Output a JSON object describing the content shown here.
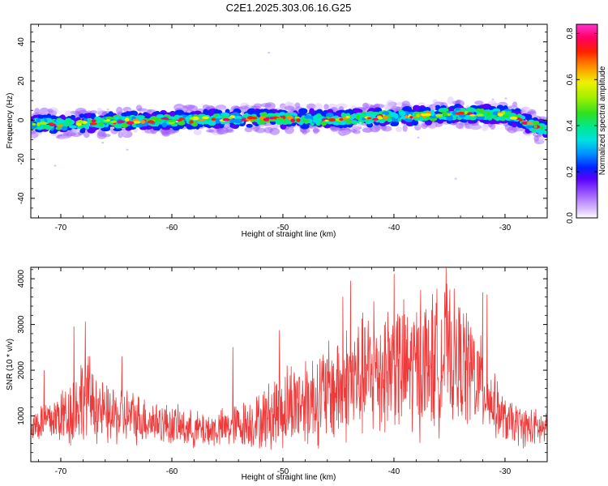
{
  "title": "C2E1.2025.303.06.16.G25",
  "colors": {
    "snr_line": "#ee3a3a",
    "axis": "#000000",
    "colormap": [
      "#ffffff",
      "#dcc4ff",
      "#a060ff",
      "#5a00ff",
      "#0022ff",
      "#0090ff",
      "#00e0e0",
      "#00e890",
      "#30e020",
      "#a0f000",
      "#f0f000",
      "#ff9000",
      "#ff2000",
      "#ff0060",
      "#ff30d0"
    ]
  },
  "chart_data": [
    {
      "type": "heatmap",
      "name": "spectrogram",
      "xlabel": "Height of straight line (km)",
      "ylabel": "Frequency (Hz)",
      "xlim": [
        -72.7,
        -26.2
      ],
      "ylim": [
        -50,
        49
      ],
      "xticks": [
        -70,
        -60,
        -50,
        -40,
        -30
      ],
      "xtick_labels": [
        "-70",
        "-60",
        "-50",
        "-40",
        "-30"
      ],
      "yticks": [
        -40,
        -20,
        0,
        20,
        40
      ],
      "ytick_labels": [
        "-40",
        "-20",
        "0",
        "20",
        "40"
      ],
      "ridge_height_km": [
        -72.5,
        -70,
        -67.5,
        -65,
        -62.5,
        -60,
        -57.5,
        -55,
        -52.5,
        -50,
        -47.5,
        -45,
        -42.5,
        -40,
        -37.5,
        -35,
        -32.5,
        -30,
        -28.5,
        -27.5,
        -26.2
      ],
      "ridge_frequency_hz": [
        -1.8,
        -2.2,
        -1.5,
        -0.8,
        -0.3,
        -0.2,
        0.2,
        0.8,
        1.0,
        0.8,
        0.5,
        0.6,
        1.2,
        1.8,
        2.5,
        3.2,
        3.0,
        2.8,
        0.5,
        -3.0,
        -5.5
      ],
      "colorbar": {
        "label": "Normalized spectral amplitude",
        "range": [
          0,
          0.84
        ],
        "ticks": [
          0,
          0.2,
          0.4,
          0.6,
          0.8
        ],
        "tick_labels": [
          "0.0",
          "0.2",
          "0.4",
          "0.6",
          "0.8"
        ]
      }
    },
    {
      "type": "line",
      "name": "snr",
      "xlabel": "Height of straight line (km)",
      "ylabel": "SNR (10 * v/v)",
      "xlim": [
        -72.7,
        -26.2
      ],
      "ylim": [
        0,
        4250
      ],
      "xticks": [
        -70,
        -60,
        -50,
        -40,
        -30
      ],
      "xtick_labels": [
        "-70",
        "-60",
        "-50",
        "-40",
        "-30"
      ],
      "yticks": [
        1000,
        2000,
        3000,
        4000
      ],
      "ytick_labels": [
        "1000",
        "2000",
        "3000",
        "4000"
      ],
      "envelope_x": [
        -72.7,
        -71.0,
        -69.0,
        -67.8,
        -66.0,
        -64.0,
        -62.0,
        -60.0,
        -58.0,
        -56.0,
        -54.0,
        -52.0,
        -50.5,
        -49.0,
        -47.0,
        -45.0,
        -43.5,
        -42.0,
        -40.5,
        -39.0,
        -37.0,
        -35.5,
        -34.5,
        -33.0,
        -31.5,
        -30.0,
        -28.0,
        -26.2
      ],
      "envelope_mid": [
        800,
        900,
        1100,
        1500,
        1000,
        1000,
        900,
        800,
        700,
        700,
        800,
        900,
        1100,
        1300,
        1400,
        1600,
        1800,
        1900,
        2100,
        2000,
        2100,
        2300,
        2200,
        2000,
        1400,
        900,
        750,
        700
      ],
      "envelope_amp": [
        450,
        550,
        900,
        1100,
        750,
        700,
        550,
        500,
        450,
        450,
        550,
        700,
        1000,
        1100,
        1200,
        1400,
        1500,
        1600,
        1700,
        1700,
        1700,
        1800,
        1600,
        1500,
        900,
        550,
        500,
        450
      ],
      "peaks": [
        {
          "x": -71.5,
          "y": 2000
        },
        {
          "x": -68.8,
          "y": 2950
        },
        {
          "x": -67.8,
          "y": 3060
        },
        {
          "x": -64.5,
          "y": 2300
        },
        {
          "x": -54.5,
          "y": 2500
        },
        {
          "x": -50.3,
          "y": 2870
        },
        {
          "x": -44.6,
          "y": 3600
        },
        {
          "x": -43.9,
          "y": 3950
        },
        {
          "x": -41.8,
          "y": 3500
        },
        {
          "x": -40.0,
          "y": 4100
        },
        {
          "x": -37.6,
          "y": 3750
        },
        {
          "x": -35.3,
          "y": 4230
        },
        {
          "x": -32.0,
          "y": 3700
        },
        {
          "x": -31.6,
          "y": 3650
        }
      ]
    }
  ]
}
